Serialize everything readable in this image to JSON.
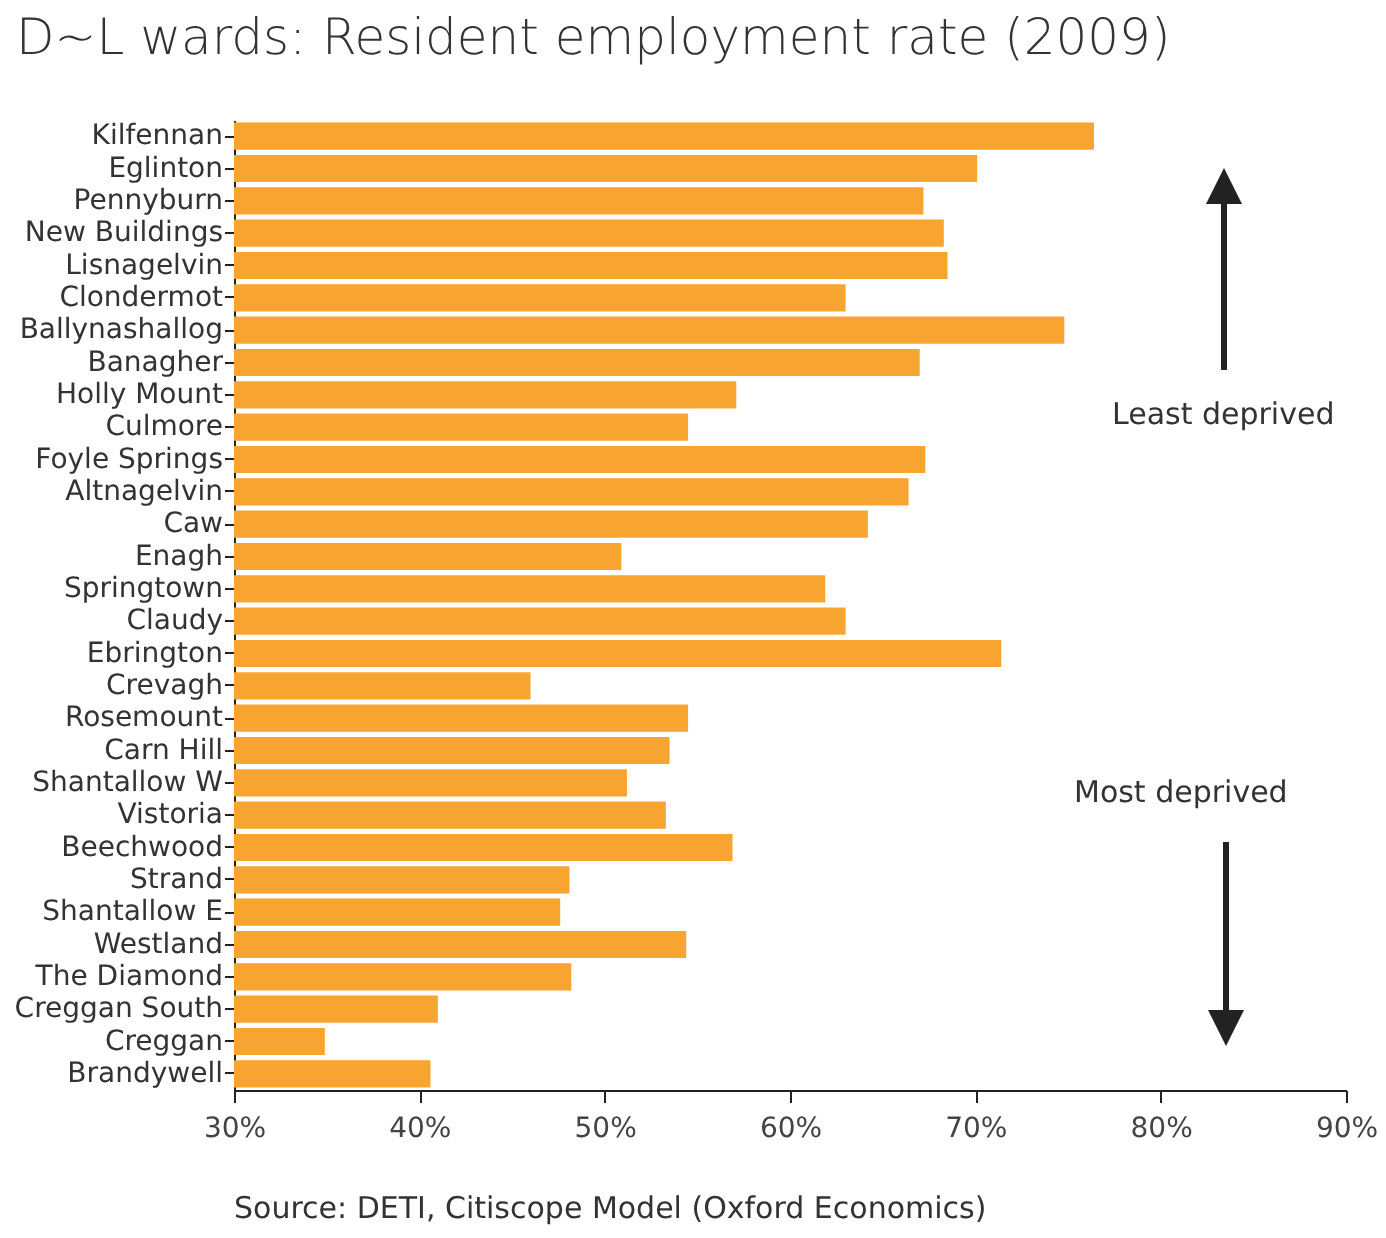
{
  "chart_data": {
    "type": "bar",
    "orientation": "horizontal",
    "title": "D~L wards: Resident employment rate (2009)",
    "categories": [
      "Kilfennan",
      "Eglinton",
      "Pennyburn",
      "New Buildings",
      "Lisnagelvin",
      "Clondermot",
      "Ballynashallog",
      "Banagher",
      "Holly Mount",
      "Culmore",
      "Foyle Springs",
      "Altnagelvin",
      "Caw",
      "Enagh",
      "Springtown",
      "Claudy",
      "Ebrington",
      "Crevagh",
      "Rosemount",
      "Carn Hill",
      "Shantallow W",
      "Vistoria",
      "Beechwood",
      "Strand",
      "Shantallow E",
      "Westland",
      "The Diamond",
      "Creggan South",
      "Creggan",
      "Brandywell"
    ],
    "values": [
      76.4,
      70.1,
      67.2,
      68.3,
      68.5,
      63.0,
      74.8,
      67.0,
      57.1,
      54.5,
      67.3,
      66.4,
      64.2,
      50.9,
      61.9,
      63.0,
      71.4,
      46.0,
      54.5,
      53.5,
      51.2,
      53.3,
      56.9,
      48.1,
      47.6,
      54.4,
      48.2,
      41.0,
      34.9,
      40.6
    ],
    "color": "#f8a431",
    "xlim": [
      30,
      90
    ],
    "xticks": [
      {
        "value": 30,
        "label": "30%"
      },
      {
        "value": 40,
        "label": "40%"
      },
      {
        "value": 50,
        "label": "50%"
      },
      {
        "value": 60,
        "label": "60%"
      },
      {
        "value": 70,
        "label": "70%"
      },
      {
        "value": 80,
        "label": "80%"
      },
      {
        "value": 90,
        "label": "90%"
      }
    ],
    "grid": false,
    "annotations": [
      "Least deprived",
      "Most deprived",
      "Source: DETI, Citiscope Model (Oxford Economics)"
    ]
  }
}
